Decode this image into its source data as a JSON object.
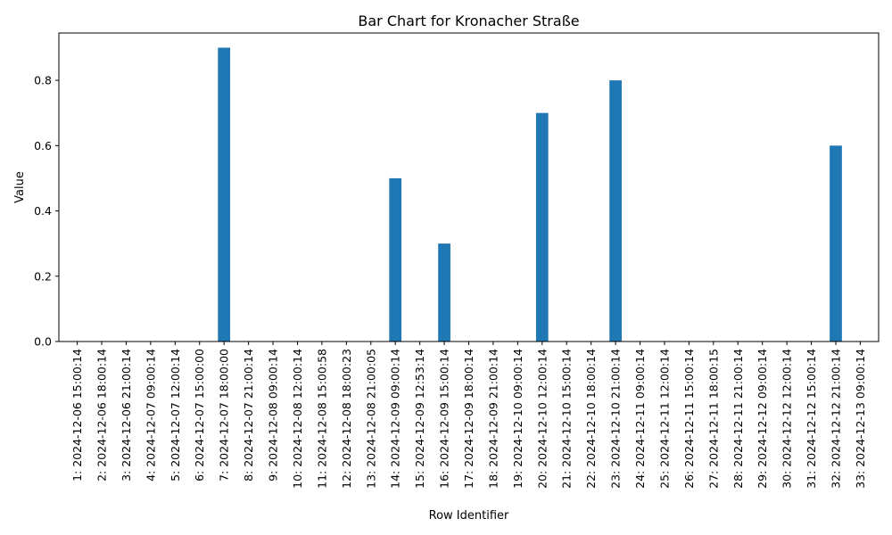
{
  "chart_data": {
    "type": "bar",
    "title": "Bar Chart for Kronacher Straße",
    "xlabel": "Row Identifier",
    "ylabel": "Value",
    "ylim": [
      0,
      0.945
    ],
    "yticks": [
      "0.0",
      "0.2",
      "0.4",
      "0.6",
      "0.8"
    ],
    "grid": false,
    "bar_color": "#1f77b4",
    "categories": [
      "1: 2024-12-06 15:00:14",
      "2: 2024-12-06 18:00:14",
      "3: 2024-12-06 21:00:14",
      "4: 2024-12-07 09:00:14",
      "5: 2024-12-07 12:00:14",
      "6: 2024-12-07 15:00:00",
      "7: 2024-12-07 18:00:00",
      "8: 2024-12-07 21:00:14",
      "9: 2024-12-08 09:00:14",
      "10: 2024-12-08 12:00:14",
      "11: 2024-12-08 15:00:58",
      "12: 2024-12-08 18:00:23",
      "13: 2024-12-08 21:00:05",
      "14: 2024-12-09 09:00:14",
      "15: 2024-12-09 12:53:14",
      "16: 2024-12-09 15:00:14",
      "17: 2024-12-09 18:00:14",
      "18: 2024-12-09 21:00:14",
      "19: 2024-12-10 09:00:14",
      "20: 2024-12-10 12:00:14",
      "21: 2024-12-10 15:00:14",
      "22: 2024-12-10 18:00:14",
      "23: 2024-12-10 21:00:14",
      "24: 2024-12-11 09:00:14",
      "25: 2024-12-11 12:00:14",
      "26: 2024-12-11 15:00:14",
      "27: 2024-12-11 18:00:15",
      "28: 2024-12-11 21:00:14",
      "29: 2024-12-12 09:00:14",
      "30: 2024-12-12 12:00:14",
      "31: 2024-12-12 15:00:14",
      "32: 2024-12-12 21:00:14",
      "33: 2024-12-13 09:00:14"
    ],
    "values": [
      0,
      0,
      0,
      0,
      0,
      0,
      0.9,
      0,
      0,
      0,
      0,
      0,
      0,
      0.5,
      0,
      0.3,
      0,
      0,
      0,
      0.7,
      0,
      0,
      0.8,
      0,
      0,
      0,
      0,
      0,
      0,
      0,
      0,
      0.6,
      0
    ]
  }
}
